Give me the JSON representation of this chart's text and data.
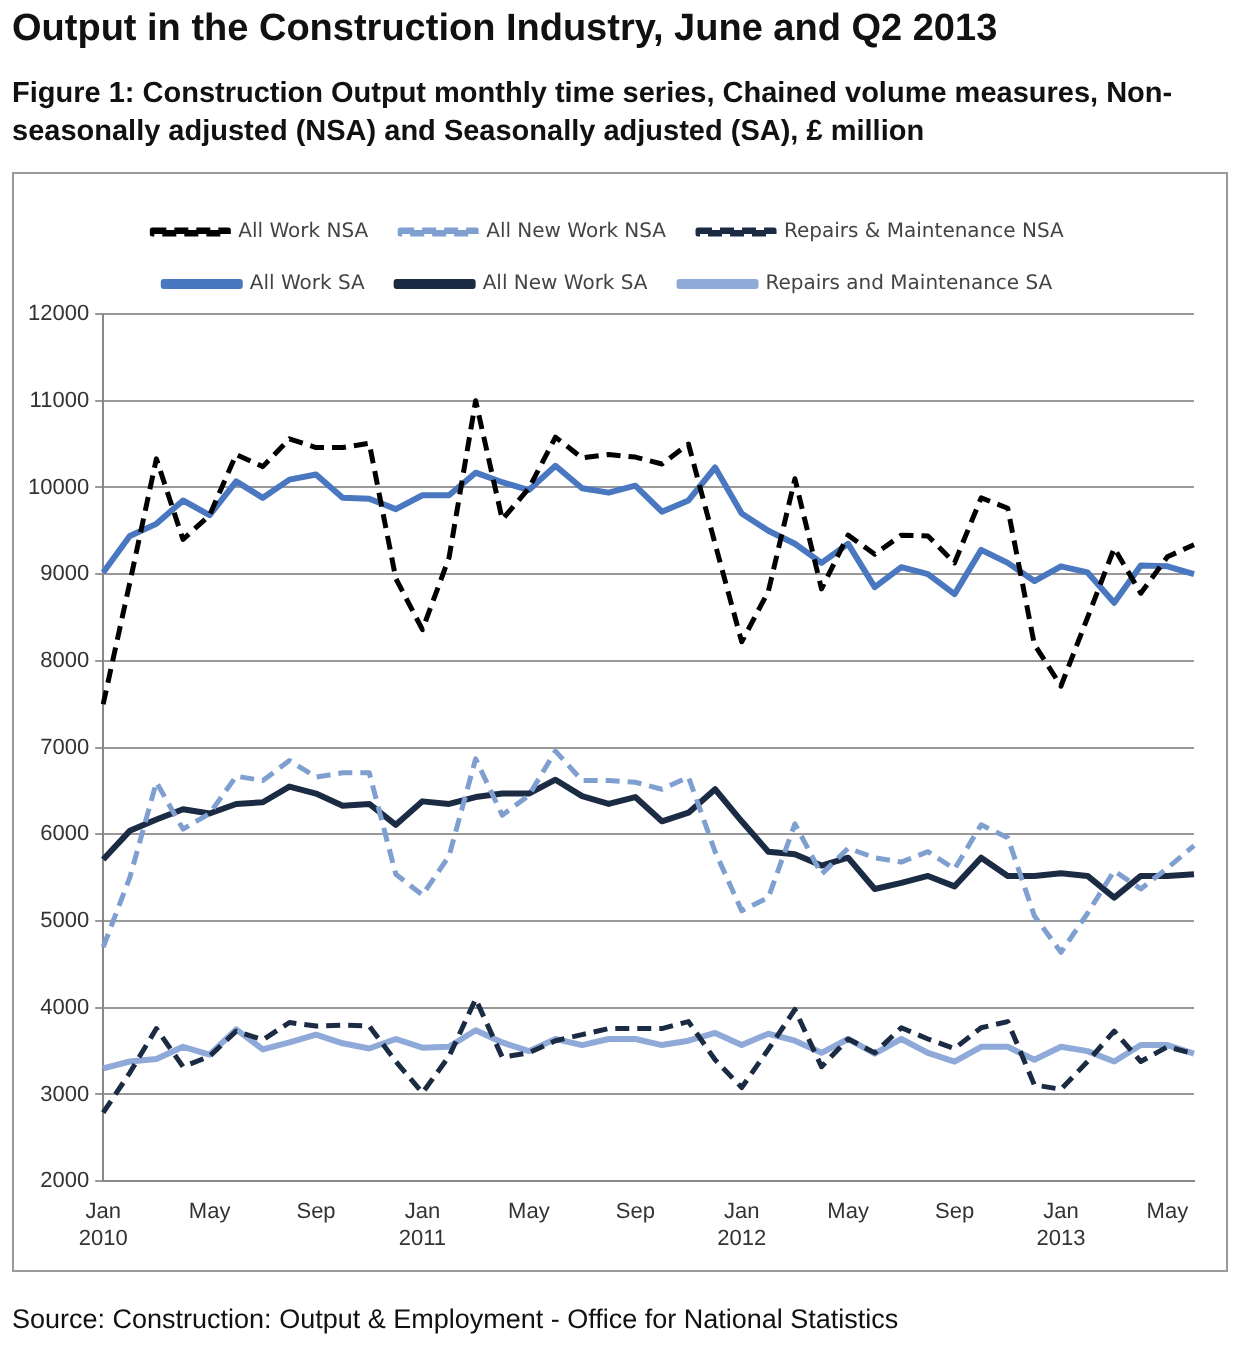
{
  "chart_data": {
    "type": "line",
    "title": "Output in the Construction Industry, June and Q2 2013",
    "subtitle": "Figure 1: Construction Output monthly time series, Chained volume measures, Non-seasonally adjusted (NSA) and Seasonally adjusted (SA), £ million",
    "annotations": [
      "Source: Construction: Output & Employment - Office for National Statistics"
    ],
    "categories": [
      "Jan 2010",
      null,
      null,
      null,
      "May",
      null,
      null,
      null,
      "Sep",
      null,
      null,
      null,
      "Jan 2011",
      null,
      null,
      null,
      "May",
      null,
      null,
      null,
      "Sep",
      null,
      null,
      null,
      "Jan 2012",
      null,
      null,
      null,
      "May",
      null,
      null,
      null,
      "Sep",
      null,
      null,
      null,
      "Jan 2013",
      null,
      null,
      null,
      "May",
      null
    ],
    "ylim": [
      2000,
      12000
    ],
    "yticks": [
      2000,
      3000,
      4000,
      5000,
      6000,
      7000,
      8000,
      9000,
      10000,
      11000,
      12000
    ],
    "grid": "y",
    "legend": "top",
    "marker": "none",
    "series": [
      {
        "name": "All Work NSA",
        "color": "#000000",
        "line_style": "dashed",
        "values": [
          7500,
          8900,
          10330,
          9400,
          9680,
          10380,
          10240,
          10560,
          10460,
          10460,
          10510,
          8950,
          8360,
          9190,
          11000,
          9630,
          9990,
          10580,
          10340,
          10380,
          10350,
          10270,
          10500,
          9350,
          8220,
          8800,
          10100,
          8830,
          9450,
          9230,
          9450,
          9440,
          9130,
          9880,
          9760,
          8190,
          7710,
          8500,
          9300,
          8780,
          9200,
          9340
        ]
      },
      {
        "name": "All New Work NSA",
        "color": "#7f9fd0",
        "line_style": "dashed",
        "values": [
          4700,
          5500,
          6600,
          6060,
          6240,
          6670,
          6620,
          6850,
          6660,
          6710,
          6710,
          5540,
          5300,
          5750,
          6870,
          6220,
          6450,
          6960,
          6620,
          6620,
          6600,
          6520,
          6660,
          5800,
          5120,
          5270,
          6120,
          5540,
          5840,
          5730,
          5680,
          5800,
          5600,
          6110,
          5960,
          5060,
          4640,
          5090,
          5580,
          5370,
          5610,
          5870
        ]
      },
      {
        "name": "Repairs & Maintenance NSA",
        "color": "#1c2b44",
        "line_style": "dashed",
        "values": [
          2790,
          3250,
          3760,
          3320,
          3440,
          3730,
          3630,
          3830,
          3790,
          3800,
          3790,
          3380,
          3020,
          3440,
          4100,
          3430,
          3480,
          3620,
          3690,
          3760,
          3760,
          3760,
          3840,
          3400,
          3080,
          3520,
          3980,
          3320,
          3640,
          3480,
          3770,
          3640,
          3530,
          3770,
          3840,
          3110,
          3060,
          3380,
          3730,
          3380,
          3550,
          3470
        ]
      },
      {
        "name": "All Work SA",
        "color": "#4a78c0",
        "line_style": "solid",
        "values": [
          9020,
          9440,
          9580,
          9850,
          9680,
          10070,
          9880,
          10090,
          10150,
          9880,
          9870,
          9750,
          9910,
          9910,
          10170,
          10060,
          9970,
          10250,
          9990,
          9940,
          10020,
          9720,
          9850,
          10230,
          9700,
          9500,
          9350,
          9130,
          9350,
          8850,
          9080,
          9000,
          8770,
          9280,
          9130,
          8920,
          9090,
          9020,
          8670,
          9100,
          9090,
          9000
        ]
      },
      {
        "name": "All New Work SA",
        "color": "#1c2b44",
        "line_style": "solid",
        "values": [
          5710,
          6040,
          6170,
          6290,
          6240,
          6350,
          6370,
          6550,
          6470,
          6330,
          6350,
          6110,
          6380,
          6350,
          6430,
          6470,
          6470,
          6630,
          6440,
          6350,
          6430,
          6150,
          6250,
          6520,
          6150,
          5800,
          5770,
          5640,
          5730,
          5370,
          5440,
          5520,
          5400,
          5730,
          5520,
          5520,
          5550,
          5520,
          5270,
          5520,
          5520,
          5540
        ]
      },
      {
        "name": "Repairs and Maintenance SA",
        "color": "#8faad8",
        "line_style": "solid",
        "values": [
          3300,
          3380,
          3410,
          3550,
          3460,
          3750,
          3520,
          3600,
          3690,
          3590,
          3530,
          3640,
          3540,
          3550,
          3740,
          3600,
          3500,
          3640,
          3570,
          3640,
          3640,
          3570,
          3620,
          3710,
          3570,
          3700,
          3620,
          3480,
          3640,
          3470,
          3640,
          3480,
          3380,
          3550,
          3550,
          3400,
          3550,
          3500,
          3380,
          3570,
          3570,
          3470
        ]
      }
    ]
  }
}
